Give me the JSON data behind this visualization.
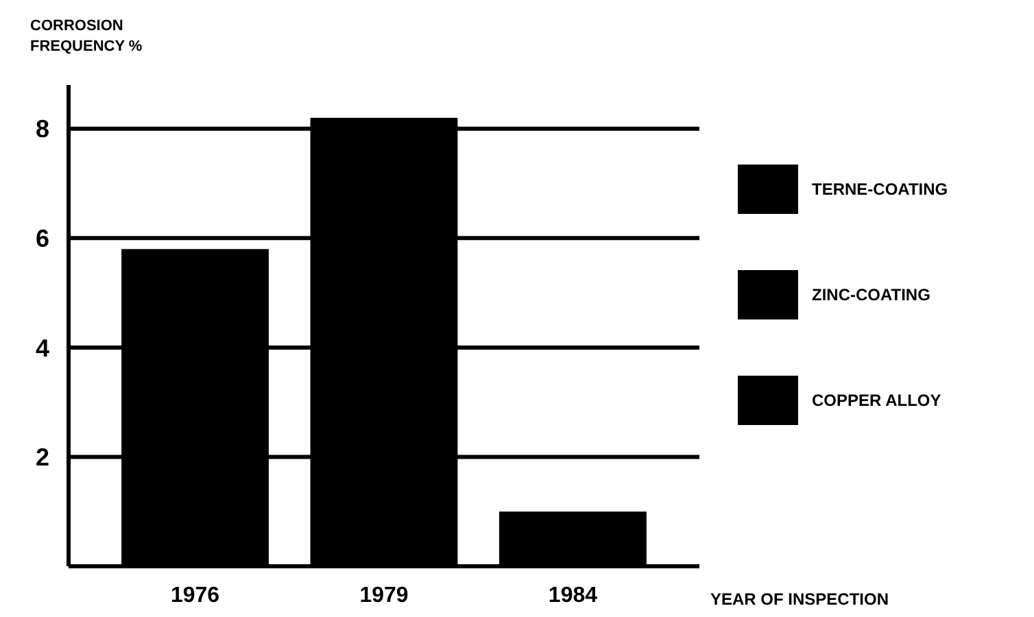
{
  "chart_data": {
    "type": "bar",
    "ylabel": "CORROSION\nFREQUENCY %",
    "xlabel": "YEAR OF INSPECTION",
    "categories": [
      "1976",
      "1979",
      "1984"
    ],
    "series": [
      {
        "name": "TERNE-COATING",
        "color": "#000000",
        "values": [
          5.8,
          8.2,
          1.0
        ]
      },
      {
        "name": "ZINC-COATING",
        "color": "#000000",
        "values": [
          null,
          null,
          null
        ]
      },
      {
        "name": "COPPER ALLOY",
        "color": "#000000",
        "values": [
          null,
          null,
          null
        ]
      }
    ],
    "ylim": [
      0,
      8.8
    ],
    "yticks": [
      2,
      4,
      6,
      8
    ],
    "grid": "y",
    "legend": "right"
  }
}
